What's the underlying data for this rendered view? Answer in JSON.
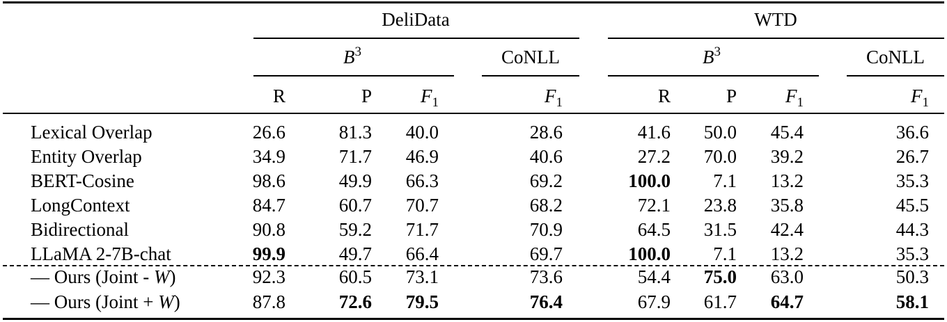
{
  "groups": {
    "delidata": "DeliData",
    "wtd": "WTD"
  },
  "subgroups": {
    "b3_base": "B",
    "b3_exp": "3",
    "conll": "CoNLL"
  },
  "columns": {
    "r": "R",
    "p": "P",
    "f": "F",
    "f_sub": "1"
  },
  "rows": [
    {
      "method": "Lexical Overlap",
      "values": [
        "26.6",
        "81.3",
        "40.0",
        "28.6",
        "41.6",
        "50.0",
        "45.4",
        "36.6"
      ]
    },
    {
      "method": "Entity Overlap",
      "values": [
        "34.9",
        "71.7",
        "46.9",
        "40.6",
        "27.2",
        "70.0",
        "39.2",
        "26.7"
      ]
    },
    {
      "method": "BERT-Cosine",
      "values": [
        "98.6",
        "49.9",
        "66.3",
        "69.2",
        "100.0",
        "7.1",
        "13.2",
        "35.3"
      ]
    },
    {
      "method": "LongContext",
      "values": [
        "84.7",
        "60.7",
        "70.7",
        "68.2",
        "72.1",
        "23.8",
        "35.8",
        "45.5"
      ]
    },
    {
      "method": "Bidirectional",
      "values": [
        "90.8",
        "59.2",
        "71.7",
        "70.9",
        "64.5",
        "31.5",
        "42.4",
        "44.3"
      ]
    },
    {
      "method": "LLaMA 2-7B-chat",
      "values": [
        "99.9",
        "49.7",
        "66.4",
        "69.7",
        "100.0",
        "7.1",
        "13.2",
        "35.3"
      ]
    }
  ],
  "ours_rows": [
    {
      "prefix": "— Ours (Joint - ",
      "var": "W",
      "suffix": ")",
      "values": [
        "92.3",
        "60.5",
        "73.1",
        "73.6",
        "54.4",
        "75.0",
        "63.0",
        "50.3"
      ]
    },
    {
      "prefix": "— Ours (Joint + ",
      "var": "W",
      "suffix": ")",
      "values": [
        "87.8",
        "72.6",
        "79.5",
        "76.4",
        "67.9",
        "61.7",
        "64.7",
        "58.1"
      ]
    }
  ],
  "bold_cells": {
    "row_2": [
      4
    ],
    "row_5": [
      0,
      4
    ],
    "ours_0": [
      5
    ],
    "ours_1": [
      1,
      2,
      3,
      6,
      7
    ]
  }
}
